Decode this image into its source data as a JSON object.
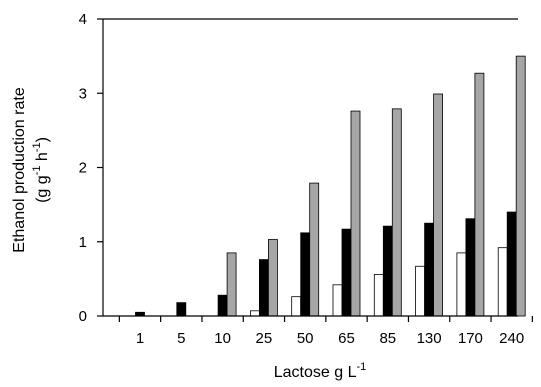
{
  "chart_data": {
    "type": "bar",
    "title": "",
    "xlabel": "Lactose g L",
    "xlabel_superscript": "-1",
    "ylabel_line1": "Ethanol production rate",
    "ylabel_line2_parts": [
      "(g g",
      "-1",
      " h",
      "-1",
      ")"
    ],
    "categories": [
      "1",
      "5",
      "10",
      "25",
      "50",
      "65",
      "85",
      "130",
      "170",
      "240"
    ],
    "ylim": [
      0,
      4
    ],
    "yticks": [
      0,
      1,
      2,
      3,
      4
    ],
    "grid": false,
    "legend": "none",
    "series": [
      {
        "fill": "#ffffff",
        "values": [
          0.0,
          0.0,
          0.0,
          0.07,
          0.26,
          0.42,
          0.56,
          0.67,
          0.85,
          0.92
        ]
      },
      {
        "fill": "#000000",
        "values": [
          0.05,
          0.18,
          0.28,
          0.76,
          1.12,
          1.17,
          1.21,
          1.25,
          1.31,
          1.4
        ]
      },
      {
        "fill": "#a6a6a6",
        "values": [
          0.0,
          0.0,
          0.85,
          1.03,
          1.79,
          2.76,
          2.79,
          2.99,
          3.27,
          3.5
        ]
      }
    ]
  }
}
